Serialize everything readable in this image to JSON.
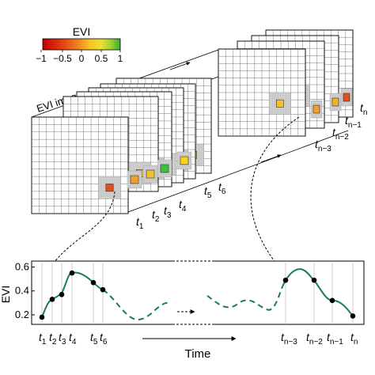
{
  "legend": {
    "title": "EVI",
    "ticks": [
      "−1",
      "−0.5",
      "0",
      "0.5",
      "1"
    ],
    "colors": [
      "#c00000",
      "#e04010",
      "#f08020",
      "#f8c020",
      "#f0e030",
      "#a0d030",
      "#30b030"
    ]
  },
  "stack_label": "EVI images",
  "time_labels_top": {
    "t1": {
      "base": "t",
      "sub": "1"
    },
    "t2": {
      "base": "t",
      "sub": "2"
    },
    "t3": {
      "base": "t",
      "sub": "3"
    },
    "t4": {
      "base": "t",
      "sub": "4"
    },
    "t5": {
      "base": "t",
      "sub": "5"
    },
    "t6": {
      "base": "t",
      "sub": "6"
    },
    "tn3": {
      "base": "t",
      "sub": "n−3"
    },
    "tn2": {
      "base": "t",
      "sub": "n−2"
    },
    "tn1": {
      "base": "t",
      "sub": "n−1"
    },
    "tn": {
      "base": "t",
      "sub": "n"
    }
  },
  "pixel_colors": {
    "img1": "#e05020",
    "img2": "#f0a030",
    "img3": "#f0c030",
    "img4": "#40c040",
    "img5": "#f8d020",
    "img_n3": "#f8c030",
    "img_n2": "#f0a030",
    "img_n1": "#f0b030",
    "img_n": "#e05020"
  },
  "chart": {
    "ylabel": "EVI",
    "xlabel": "Time",
    "yticks": [
      "0.2",
      "0.4",
      "0.6"
    ],
    "xlabels": [
      {
        "base": "t",
        "sub": "1"
      },
      {
        "base": "t",
        "sub": "2"
      },
      {
        "base": "t",
        "sub": "3"
      },
      {
        "base": "t",
        "sub": "4"
      },
      {
        "base": "t",
        "sub": "5"
      },
      {
        "base": "t",
        "sub": "6"
      },
      {
        "base": "t",
        "sub": "n−3"
      },
      {
        "base": "t",
        "sub": "n−2"
      },
      {
        "base": "t",
        "sub": "n−1"
      },
      {
        "base": "t",
        "sub": "n"
      }
    ],
    "line_color": "#1a7a5a"
  }
}
